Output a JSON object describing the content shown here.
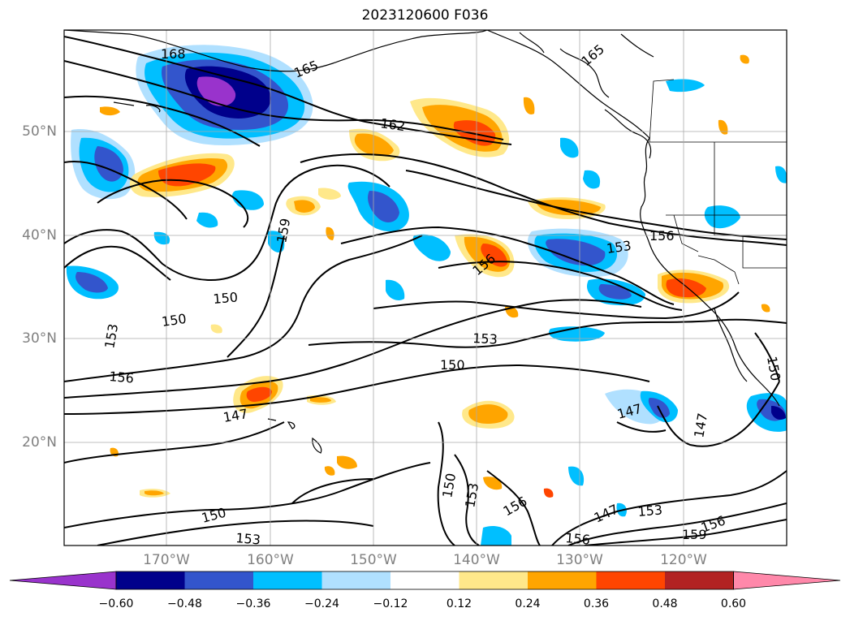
{
  "title": "2023120600 F036",
  "lat_labels": [
    "50°N",
    "40°N",
    "30°N",
    "20°N"
  ],
  "lon_labels": [
    "170°W",
    "160°W",
    "150°W",
    "140°W",
    "130°W",
    "120°W"
  ],
  "contour_labels": [
    "168",
    "165",
    "165",
    "162",
    "159",
    "156",
    "156",
    "153",
    "153",
    "153",
    "150",
    "150",
    "150",
    "150",
    "147",
    "147",
    "147",
    "156",
    "153",
    "150",
    "153",
    "156",
    "156",
    "153",
    "159",
    "147",
    "156"
  ],
  "colorbar": {
    "ticks": [
      "−0.60",
      "−0.48",
      "−0.36",
      "−0.24",
      "−0.12",
      "0.12",
      "0.24",
      "0.36",
      "0.48",
      "0.60"
    ],
    "colors": [
      "#9933cc",
      "#00008b",
      "#3355cc",
      "#00bfff",
      "#b0e0ff",
      "#ffffff",
      "#ffe88a",
      "#ffa500",
      "#ff4500",
      "#b22222",
      "#ff88aa"
    ]
  }
}
